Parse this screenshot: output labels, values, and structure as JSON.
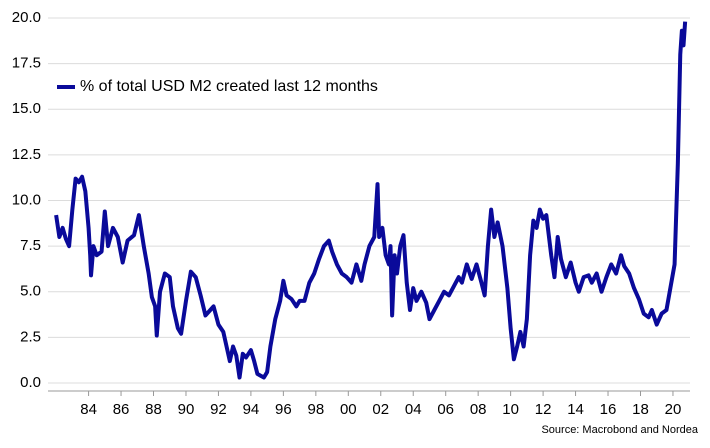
{
  "chart_data": {
    "type": "line",
    "series": [
      {
        "name": "% of total USD M2 created last 12 months",
        "color": "#0a0a9a",
        "x": [
          1982.0,
          1982.2,
          1982.4,
          1982.6,
          1982.8,
          1983.0,
          1983.2,
          1983.4,
          1983.6,
          1983.8,
          1984.0,
          1984.1,
          1984.15,
          1984.3,
          1984.5,
          1984.8,
          1985.0,
          1985.2,
          1985.5,
          1985.8,
          1986.1,
          1986.4,
          1986.8,
          1987.1,
          1987.4,
          1987.7,
          1987.9,
          1988.1,
          1988.2,
          1988.4,
          1988.7,
          1989.0,
          1989.2,
          1989.5,
          1989.7,
          1990.0,
          1990.3,
          1990.6,
          1990.9,
          1991.2,
          1991.5,
          1991.7,
          1992.0,
          1992.3,
          1992.5,
          1992.7,
          1992.9,
          1993.1,
          1993.3,
          1993.5,
          1993.7,
          1994.0,
          1994.2,
          1994.4,
          1994.6,
          1994.8,
          1995.0,
          1995.2,
          1995.5,
          1995.8,
          1996.0,
          1996.2,
          1996.5,
          1996.8,
          1997.0,
          1997.3,
          1997.6,
          1997.9,
          1998.2,
          1998.5,
          1998.8,
          1999.0,
          1999.3,
          1999.6,
          1999.9,
          2000.2,
          2000.5,
          2000.8,
          2001.0,
          2001.3,
          2001.6,
          2001.8,
          2001.9,
          2002.1,
          2002.3,
          2002.5,
          2002.6,
          2002.7,
          2002.85,
          2003.0,
          2003.2,
          2003.4,
          2003.6,
          2003.8,
          2004.0,
          2004.2,
          2004.5,
          2004.8,
          2005.0,
          2005.3,
          2005.6,
          2005.9,
          2006.2,
          2006.5,
          2006.8,
          2007.0,
          2007.3,
          2007.6,
          2007.9,
          2008.2,
          2008.4,
          2008.6,
          2008.8,
          2009.0,
          2009.2,
          2009.5,
          2009.8,
          2010.0,
          2010.2,
          2010.4,
          2010.6,
          2010.8,
          2011.0,
          2011.2,
          2011.4,
          2011.6,
          2011.8,
          2012.0,
          2012.2,
          2012.5,
          2012.7,
          2012.9,
          2013.1,
          2013.4,
          2013.7,
          2014.0,
          2014.2,
          2014.5,
          2014.8,
          2015.0,
          2015.3,
          2015.6,
          2015.9,
          2016.2,
          2016.5,
          2016.8,
          2017.0,
          2017.3,
          2017.6,
          2017.9,
          2018.2,
          2018.5,
          2018.7,
          2019.0,
          2019.3,
          2019.6,
          2019.9,
          2020.1,
          2020.3,
          2020.45,
          2020.55,
          2020.65,
          2020.75
        ],
        "values": [
          9.2,
          8.0,
          8.5,
          7.9,
          7.5,
          9.5,
          11.2,
          11.0,
          11.3,
          10.5,
          8.5,
          7.0,
          5.9,
          7.5,
          7.0,
          7.2,
          9.4,
          7.5,
          8.5,
          8.0,
          6.6,
          7.8,
          8.1,
          9.2,
          7.5,
          6.0,
          4.7,
          4.2,
          2.6,
          5.0,
          6.0,
          5.8,
          4.2,
          3.0,
          2.7,
          4.5,
          6.1,
          5.8,
          4.8,
          3.7,
          4.0,
          4.2,
          3.2,
          2.8,
          2.0,
          1.2,
          2.0,
          1.5,
          0.3,
          1.6,
          1.4,
          1.8,
          1.2,
          0.5,
          0.4,
          0.3,
          0.6,
          2.0,
          3.5,
          4.5,
          5.6,
          4.8,
          4.6,
          4.2,
          4.5,
          4.5,
          5.5,
          6.0,
          6.8,
          7.5,
          7.8,
          7.2,
          6.5,
          6.0,
          5.8,
          5.5,
          6.5,
          5.6,
          6.5,
          7.5,
          8.0,
          10.9,
          8.0,
          8.5,
          7.0,
          6.5,
          7.5,
          3.7,
          7.0,
          6.0,
          7.5,
          8.1,
          5.5,
          4.0,
          5.2,
          4.5,
          5.0,
          4.4,
          3.5,
          4.0,
          4.5,
          5.0,
          4.8,
          5.3,
          5.8,
          5.5,
          6.5,
          5.7,
          6.5,
          5.5,
          4.8,
          7.5,
          9.5,
          8.0,
          8.8,
          7.5,
          5.2,
          3.0,
          1.3,
          2.0,
          2.8,
          2.0,
          3.5,
          7.0,
          8.9,
          8.5,
          9.5,
          9.0,
          9.2,
          7.0,
          5.8,
          8.0,
          6.8,
          5.8,
          6.6,
          5.5,
          5.0,
          5.8,
          5.9,
          5.5,
          6.0,
          5.0,
          5.8,
          6.5,
          6.0,
          7.0,
          6.4,
          6.0,
          5.2,
          4.6,
          3.8,
          3.6,
          4.0,
          3.2,
          3.8,
          4.0,
          5.5,
          6.5,
          12.0,
          18.0,
          19.3,
          18.5,
          19.8
        ]
      }
    ],
    "xlim": [
      1981.5,
      2021.05
    ],
    "xticks": [
      {
        "value": 1984,
        "label": "84"
      },
      {
        "value": 1986,
        "label": "86"
      },
      {
        "value": 1988,
        "label": "88"
      },
      {
        "value": 1990,
        "label": "90"
      },
      {
        "value": 1992,
        "label": "92"
      },
      {
        "value": 1994,
        "label": "94"
      },
      {
        "value": 1996,
        "label": "96"
      },
      {
        "value": 1998,
        "label": "98"
      },
      {
        "value": 2000,
        "label": "00"
      },
      {
        "value": 2002,
        "label": "02"
      },
      {
        "value": 2004,
        "label": "04"
      },
      {
        "value": 2006,
        "label": "06"
      },
      {
        "value": 2008,
        "label": "08"
      },
      {
        "value": 2010,
        "label": "10"
      },
      {
        "value": 2012,
        "label": "12"
      },
      {
        "value": 2014,
        "label": "14"
      },
      {
        "value": 2016,
        "label": "16"
      },
      {
        "value": 2018,
        "label": "18"
      },
      {
        "value": 2020,
        "label": "20"
      }
    ],
    "ylim": [
      -0.4,
      20.4
    ],
    "yticks": [
      {
        "value": 0,
        "label": "0.0"
      },
      {
        "value": 2.5,
        "label": "2.5"
      },
      {
        "value": 5,
        "label": "5.0"
      },
      {
        "value": 7.5,
        "label": "7.5"
      },
      {
        "value": 10,
        "label": "10.0"
      },
      {
        "value": 12.5,
        "label": "12.5"
      },
      {
        "value": 15,
        "label": "15.0"
      },
      {
        "value": 17.5,
        "label": "17.5"
      },
      {
        "value": 20,
        "label": "20.0"
      }
    ],
    "grid": true,
    "legend": "upper left",
    "source": "Source: Macrobond and Nordea"
  }
}
